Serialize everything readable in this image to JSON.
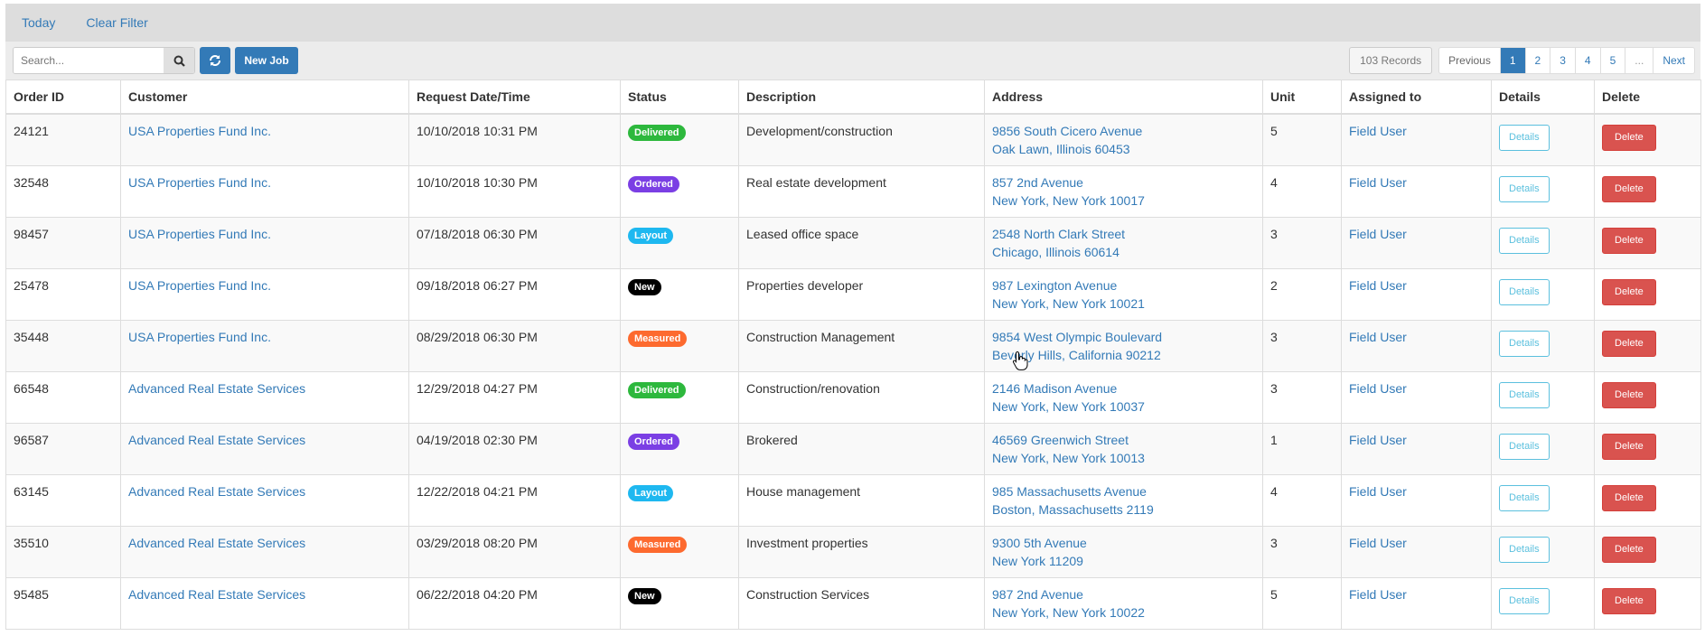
{
  "topbar": {
    "today": "Today",
    "clear_filter": "Clear Filter"
  },
  "toolbar": {
    "search_placeholder": "Search...",
    "new_job": "New Job",
    "records": "103 Records"
  },
  "pagination": {
    "previous": "Previous",
    "pages": [
      "1",
      "2",
      "3",
      "4",
      "5"
    ],
    "ellipsis": "...",
    "next": "Next",
    "current": "1"
  },
  "columns": [
    "Order ID",
    "Customer",
    "Request Date/Time",
    "Status",
    "Description",
    "Address",
    "Unit",
    "Assigned to",
    "Details",
    "Delete"
  ],
  "status_colors": {
    "Delivered": "#2db83d",
    "Ordered": "#7b3fe4",
    "Layout": "#1eb8f0",
    "New": "#000000",
    "Measured": "#fd6a2f"
  },
  "rows": [
    {
      "id": "24121",
      "customer": "USA Properties Fund Inc.",
      "date": "10/10/2018 10:31 PM",
      "status": "Delivered",
      "description": "Development/construction",
      "addr1": "9856 South Cicero Avenue",
      "addr2": "Oak Lawn, Illinois 60453",
      "unit": "5",
      "assigned": "Field User",
      "details": "Details",
      "delete": "Delete"
    },
    {
      "id": "32548",
      "customer": "USA Properties Fund Inc.",
      "date": "10/10/2018 10:30 PM",
      "status": "Ordered",
      "description": "Real estate development",
      "addr1": "857 2nd Avenue",
      "addr2": "New York, New York 10017",
      "unit": "4",
      "assigned": "Field User",
      "details": "Details",
      "delete": "Delete"
    },
    {
      "id": "98457",
      "customer": "USA Properties Fund Inc.",
      "date": "07/18/2018 06:30 PM",
      "status": "Layout",
      "description": "Leased office space",
      "addr1": "2548 North Clark Street",
      "addr2": "Chicago, Illinois 60614",
      "unit": "3",
      "assigned": "Field User",
      "details": "Details",
      "delete": "Delete"
    },
    {
      "id": "25478",
      "customer": "USA Properties Fund Inc.",
      "date": "09/18/2018 06:27 PM",
      "status": "New",
      "description": "Properties developer",
      "addr1": "987 Lexington Avenue",
      "addr2": "New York, New York 10021",
      "unit": "2",
      "assigned": "Field User",
      "details": "Details",
      "delete": "Delete"
    },
    {
      "id": "35448",
      "customer": "USA Properties Fund Inc.",
      "date": "08/29/2018 06:30 PM",
      "status": "Measured",
      "description": "Construction Management",
      "addr1": "9854 West Olympic Boulevard",
      "addr2": "Beverly Hills, California 90212",
      "unit": "3",
      "assigned": "Field User",
      "details": "Details",
      "delete": "Delete"
    },
    {
      "id": "66548",
      "customer": "Advanced Real Estate Services",
      "date": "12/29/2018 04:27 PM",
      "status": "Delivered",
      "description": "Construction/renovation",
      "addr1": "2146 Madison Avenue",
      "addr2": "New York, New York 10037",
      "unit": "3",
      "assigned": "Field User",
      "details": "Details",
      "delete": "Delete"
    },
    {
      "id": "96587",
      "customer": "Advanced Real Estate Services",
      "date": "04/19/2018 02:30 PM",
      "status": "Ordered",
      "description": "Brokered",
      "addr1": "46569 Greenwich Street",
      "addr2": "New York, New York 10013",
      "unit": "1",
      "assigned": "Field User",
      "details": "Details",
      "delete": "Delete"
    },
    {
      "id": "63145",
      "customer": "Advanced Real Estate Services",
      "date": "12/22/2018 04:21 PM",
      "status": "Layout",
      "description": "House management",
      "addr1": "985 Massachusetts Avenue",
      "addr2": "Boston, Massachusetts 2119",
      "unit": "4",
      "assigned": "Field User",
      "details": "Details",
      "delete": "Delete"
    },
    {
      "id": "35510",
      "customer": "Advanced Real Estate Services",
      "date": "03/29/2018 08:20 PM",
      "status": "Measured",
      "description": "Investment properties",
      "addr1": "9300 5th Avenue",
      "addr2": "New York 11209",
      "unit": "3",
      "assigned": "Field User",
      "details": "Details",
      "delete": "Delete"
    },
    {
      "id": "95485",
      "customer": "Advanced Real Estate Services",
      "date": "06/22/2018 04:20 PM",
      "status": "New",
      "description": "Construction Services",
      "addr1": "987 2nd Avenue",
      "addr2": "New York, New York 10022",
      "unit": "5",
      "assigned": "Field User",
      "details": "Details",
      "delete": "Delete"
    }
  ]
}
